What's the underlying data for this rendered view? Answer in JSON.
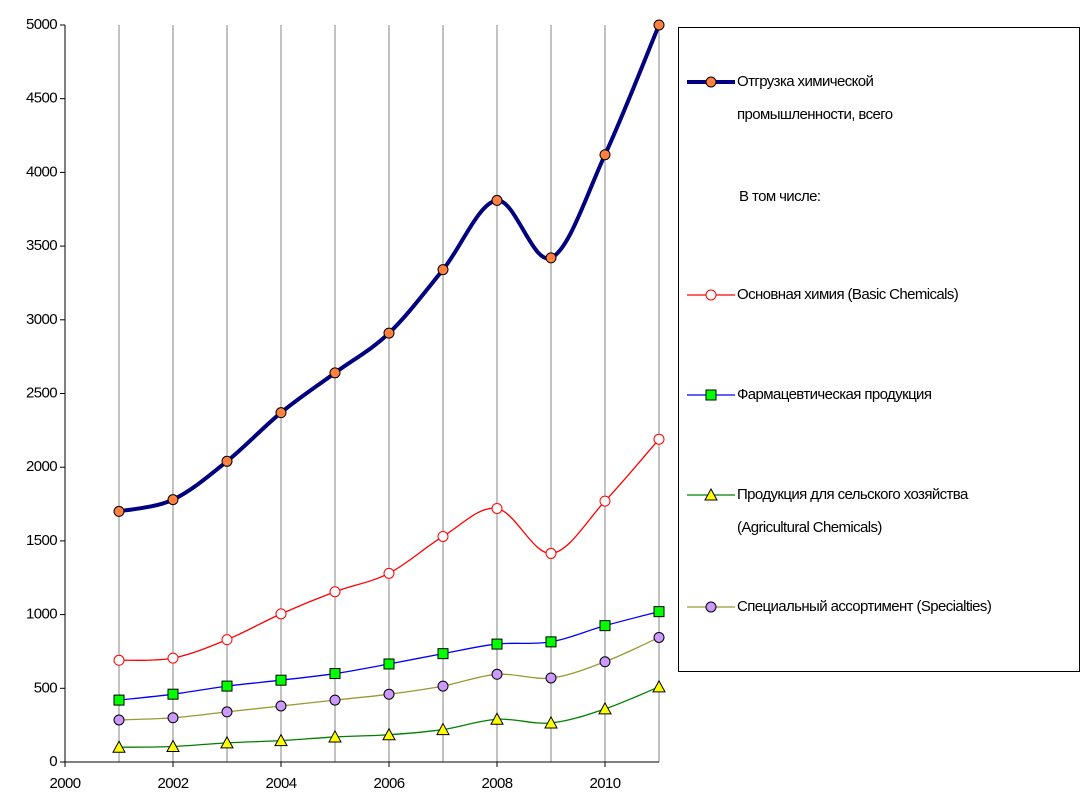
{
  "chart_data": {
    "type": "line",
    "x": [
      2001,
      2002,
      2003,
      2004,
      2005,
      2006,
      2007,
      2008,
      2009,
      2010,
      2011
    ],
    "xlim": [
      2000,
      2011
    ],
    "xticks": [
      2000,
      2002,
      2004,
      2006,
      2008,
      2010
    ],
    "xgrid": [
      2001,
      2002,
      2003,
      2004,
      2005,
      2006,
      2007,
      2008,
      2009,
      2010,
      2011
    ],
    "ylim": [
      0,
      5000
    ],
    "yticks": [
      0,
      500,
      1000,
      1500,
      2000,
      2500,
      3000,
      3500,
      4000,
      4500,
      5000
    ],
    "grid": "x",
    "legend": "right",
    "smooth": true,
    "legend_note": "В том числе:",
    "series": [
      {
        "name": "Отгрузка химической\nпромышленности, всего",
        "color": "#000080",
        "marker": "circle",
        "marker_color": "#ff8040",
        "width": 4,
        "values": [
          1700,
          1780,
          2040,
          2370,
          2640,
          2910,
          3340,
          3810,
          3420,
          4120,
          5000
        ]
      },
      {
        "name": "Основная химия (Basic Chemicals)",
        "color": "#ff0000",
        "marker": "circle",
        "marker_color": "#ffffff",
        "width": 1.3,
        "values": [
          690,
          705,
          830,
          1005,
          1155,
          1280,
          1530,
          1720,
          1415,
          1770,
          2190
        ]
      },
      {
        "name": "Фармацевтическая продукция",
        "color": "#0000ff",
        "marker": "square",
        "marker_color": "#00ff00",
        "width": 1.3,
        "values": [
          420,
          460,
          515,
          555,
          600,
          665,
          735,
          800,
          815,
          925,
          1020
        ]
      },
      {
        "name": "Продукция для сельского хозяйства\n(Agricultural Chemicals)",
        "color": "#008000",
        "marker": "triangle",
        "marker_color": "#ffff00",
        "width": 1.3,
        "values": [
          100,
          105,
          130,
          145,
          170,
          185,
          220,
          290,
          265,
          360,
          510
        ]
      },
      {
        "name": "Специальный ассортимент (Specialties)",
        "color": "#999933",
        "marker": "circle",
        "marker_color": "#cc99ff",
        "width": 1.3,
        "values": [
          285,
          300,
          340,
          380,
          420,
          460,
          515,
          595,
          570,
          680,
          845
        ]
      }
    ]
  }
}
